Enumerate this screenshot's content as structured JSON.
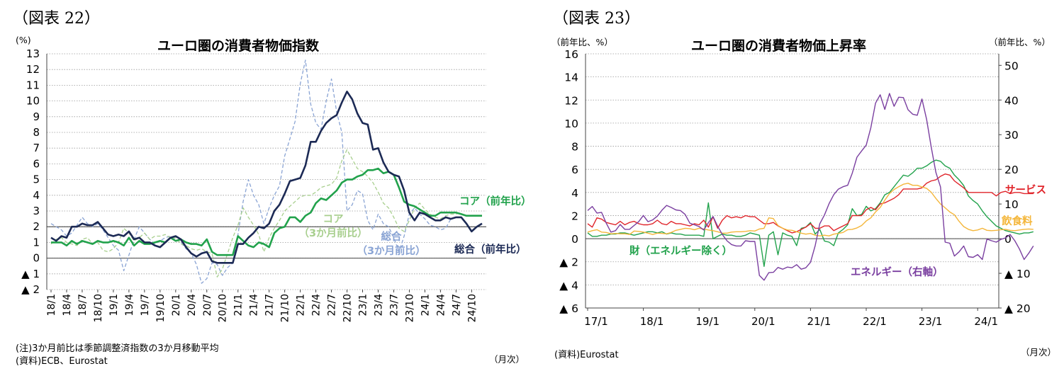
{
  "chart_data": [
    {
      "type": "line",
      "figure_label": "（図表 22）",
      "title": "ユーロ圏の消費者物価指数",
      "ylabel": "(%)",
      "xlabel": "（月次）",
      "ylim": [
        -2,
        13
      ],
      "ytick_values": [
        13,
        12,
        11,
        10,
        9,
        8,
        7,
        6,
        5,
        4,
        3,
        2,
        1,
        0,
        -1,
        -2
      ],
      "ytick_labels": [
        "13",
        "12",
        "11",
        "10",
        "9",
        "8",
        "7",
        "6",
        "5",
        "4",
        "3",
        "2",
        "1",
        "0",
        "▲ 1",
        "▲ 2"
      ],
      "xtick_labels": [
        "18/1",
        "18/4",
        "18/7",
        "18/10",
        "19/1",
        "19/4",
        "19/7",
        "19/10",
        "20/1",
        "20/4",
        "20/7",
        "20/10",
        "21/1",
        "21/4",
        "21/7",
        "21/10",
        "22/1",
        "22/4",
        "22/7",
        "22/10",
        "23/1",
        "23/4",
        "23/7",
        "23/10",
        "24/1",
        "24/4",
        "24/7",
        "24/10"
      ],
      "reference_line": 2,
      "notes": [
        "(注)3か月前比は季節調整済指数の3か月移動平均",
        "(資料)ECB、Eurostat"
      ],
      "series": [
        {
          "name": "総合（前年比）",
          "label_lines": [
            "総合（前年比）"
          ],
          "color": "#1c2a55",
          "width": 2.6,
          "dash": "",
          "values": [
            1.3,
            1.1,
            1.4,
            1.3,
            2.0,
            2.0,
            2.2,
            2.1,
            2.1,
            2.3,
            1.9,
            1.5,
            1.4,
            1.5,
            1.4,
            1.7,
            1.2,
            1.3,
            1.0,
            1.0,
            0.8,
            0.7,
            1.0,
            1.3,
            1.4,
            1.2,
            0.7,
            0.3,
            0.1,
            0.3,
            0.4,
            -0.2,
            -0.3,
            -0.3,
            -0.3,
            -0.3,
            0.9,
            0.9,
            1.3,
            1.6,
            2.0,
            1.9,
            2.2,
            3.0,
            3.4,
            4.1,
            4.9,
            5.0,
            5.1,
            5.9,
            7.4,
            7.4,
            8.1,
            8.6,
            8.9,
            9.1,
            9.9,
            10.6,
            10.1,
            9.2,
            8.6,
            8.5,
            6.9,
            7.0,
            6.1,
            5.5,
            5.3,
            5.2,
            4.3,
            2.9,
            2.4,
            2.9,
            2.8,
            2.6,
            2.4,
            2.4,
            2.6,
            2.5,
            2.6,
            2.6,
            2.2,
            1.7,
            2.0,
            2.2
          ]
        },
        {
          "name": "コア（前年比）",
          "label_lines": [
            "コア（前年比）"
          ],
          "color": "#22a24c",
          "width": 2.6,
          "dash": "",
          "values": [
            1.0,
            1.0,
            1.0,
            0.8,
            1.1,
            0.9,
            1.1,
            1.0,
            0.9,
            1.1,
            1.0,
            1.0,
            1.1,
            1.0,
            0.8,
            1.3,
            0.8,
            1.1,
            0.9,
            0.9,
            1.0,
            1.1,
            1.0,
            1.3,
            1.1,
            1.2,
            1.0,
            0.9,
            0.9,
            0.8,
            1.2,
            0.4,
            0.2,
            0.2,
            0.2,
            0.2,
            1.4,
            1.1,
            0.8,
            0.7,
            1.0,
            0.9,
            0.7,
            1.6,
            1.9,
            2.0,
            2.6,
            2.6,
            2.3,
            2.7,
            2.9,
            3.5,
            3.8,
            3.7,
            4.0,
            4.3,
            4.8,
            5.0,
            5.0,
            5.2,
            5.3,
            5.6,
            5.6,
            5.7,
            5.4,
            5.5,
            5.3,
            4.5,
            3.6,
            3.4,
            3.3,
            3.1,
            2.9,
            2.7,
            2.7,
            2.9,
            2.9,
            2.9,
            2.9,
            2.8,
            2.7,
            2.7,
            2.7,
            2.7
          ]
        },
        {
          "name": "総合（3か月前比）",
          "label_lines": [
            "総合",
            "（3か月前比）"
          ],
          "color": "#8aa4d4",
          "width": 1.3,
          "dash": "5 3",
          "values": [
            2.2,
            2.0,
            1.8,
            1.4,
            1.6,
            2.1,
            2.6,
            2.2,
            2.0,
            2.2,
            1.8,
            1.3,
            0.8,
            0.5,
            -0.8,
            0.2,
            1.2,
            2.0,
            1.6,
            1.2,
            0.9,
            1.1,
            1.3,
            1.4,
            1.2,
            1.0,
            0.6,
            0.3,
            -0.4,
            -1.6,
            -1.3,
            -0.3,
            -0.4,
            -1.1,
            -0.6,
            -0.3,
            1.5,
            3.6,
            5.0,
            4.0,
            3.4,
            2.2,
            3.2,
            4.0,
            4.6,
            6.5,
            7.6,
            8.7,
            11.1,
            12.6,
            9.8,
            8.6,
            8.2,
            10.0,
            11.4,
            9.3,
            8.0,
            3.0,
            3.4,
            4.3,
            4.1,
            2.4,
            1.8,
            2.8,
            2.2,
            2.0,
            1.3,
            0.4,
            1.4,
            2.8,
            3.2,
            2.8,
            2.5,
            2.1,
            2.0,
            1.8,
            1.9,
            2.5
          ]
        },
        {
          "name": "コア（3か月前比）",
          "label_lines": [
            "コア",
            "（3か月前比）"
          ],
          "color": "#a8cf8e",
          "width": 1.3,
          "dash": "5 3",
          "values": [
            0.9,
            1.2,
            1.3,
            1.0,
            0.9,
            0.8,
            1.2,
            1.3,
            0.9,
            1.0,
            0.5,
            0.4,
            0.6,
            1.0,
            1.9,
            1.6,
            1.1,
            1.3,
            1.6,
            1.2,
            1.4,
            1.4,
            1.5,
            1.3,
            1.3,
            0.9,
            0.8,
            0.6,
            0.5,
            0.6,
            0.4,
            0.3,
            -1.2,
            -0.7,
            0.3,
            1.3,
            2.1,
            3.2,
            2.6,
            2.1,
            1.5,
            0.4,
            1.3,
            1.9,
            2.4,
            3.0,
            3.3,
            3.6,
            3.9,
            4.0,
            4.0,
            4.2,
            4.5,
            4.6,
            4.7,
            5.1,
            6.2,
            6.9,
            6.3,
            5.7,
            5.5,
            5.2,
            4.8,
            4.2,
            3.5,
            3.2,
            2.6,
            1.9,
            1.7,
            2.4,
            3.2,
            3.5,
            3.1,
            2.8,
            2.6,
            2.5,
            2.7,
            2.8,
            2.8,
            2.9
          ]
        }
      ]
    },
    {
      "type": "line",
      "figure_label": "（図表 23）",
      "title": "ユーロ圏の消費者物価上昇率",
      "ylabel_left": "（前年比、%）",
      "ylabel_right": "（前年比、%）",
      "xlabel": "（月次）",
      "ylim_left": [
        -6,
        16
      ],
      "ylim_right": [
        -20,
        53.33
      ],
      "ytick_left_values": [
        16,
        14,
        12,
        10,
        8,
        6,
        4,
        2,
        0,
        -2,
        -4,
        -6
      ],
      "ytick_left_labels": [
        "16",
        "14",
        "12",
        "10",
        "8",
        "6",
        "4",
        "2",
        "0",
        "▲ 2",
        "▲ 4",
        "▲ 6"
      ],
      "ytick_right_values": [
        50,
        40,
        30,
        20,
        10,
        0,
        -10,
        -20
      ],
      "ytick_right_labels": [
        "50",
        "40",
        "30",
        "20",
        "10",
        "0",
        "▲ 10",
        "▲ 20"
      ],
      "xtick_labels": [
        "17/1",
        "18/1",
        "19/1",
        "20/1",
        "21/1",
        "22/1",
        "23/1",
        "24/1"
      ],
      "notes": [
        "(資料)Eurostat"
      ],
      "series": [
        {
          "name": "サービス",
          "label_lines": [
            "サービス"
          ],
          "axis": "left",
          "color": "#e0242a",
          "width": 1.4,
          "values": [
            1.3,
            1.0,
            1.8,
            1.7,
            1.4,
            1.3,
            1.2,
            1.5,
            1.2,
            1.4,
            1.5,
            1.3,
            1.2,
            1.2,
            1.3,
            1.6,
            1.3,
            1.2,
            1.5,
            1.3,
            1.3,
            1.2,
            1.1,
            1.3,
            1.2,
            1.6,
            1.0,
            1.9,
            0.9,
            1.6,
            2.0,
            1.8,
            1.9,
            1.8,
            2.0,
            1.9,
            1.9,
            1.6,
            1.3,
            1.3,
            1.4,
            1.1,
            0.9,
            0.7,
            0.5,
            0.6,
            0.8,
            1.0,
            1.3,
            0.9,
            0.9,
            1.1,
            1.1,
            0.7,
            0.9,
            1.1,
            1.3,
            2.0,
            2.0,
            2.0,
            2.5,
            2.7,
            2.5,
            3.0,
            3.1,
            3.3,
            3.5,
            3.8,
            4.3,
            4.3,
            4.3,
            4.3,
            4.4,
            4.8,
            5.0,
            5.1,
            5.4,
            5.6,
            5.5,
            5.0,
            4.7,
            4.4,
            4.0,
            4.0,
            4.0,
            4.0,
            4.0,
            4.0,
            3.7,
            4.0,
            4.1,
            3.9,
            4.0,
            4.0,
            3.9,
            3.9,
            3.9
          ]
        },
        {
          "name": "財（エネルギー除く）",
          "label_lines": [
            "財（エネルギー除く）"
          ],
          "axis": "left",
          "color": "#22a24c",
          "width": 1.4,
          "values": [
            0.5,
            0.2,
            0.2,
            0.3,
            0.3,
            0.4,
            0.4,
            0.5,
            0.5,
            0.4,
            0.3,
            0.4,
            0.5,
            0.6,
            0.6,
            0.5,
            0.6,
            0.4,
            0.5,
            0.4,
            0.4,
            0.3,
            0.3,
            0.3,
            0.3,
            0.2,
            3.1,
            0.0,
            0.2,
            0.4,
            0.3,
            0.3,
            0.2,
            0.2,
            0.3,
            0.5,
            0.4,
            0.3,
            -2.4,
            0.3,
            0.6,
            -1.4,
            0.5,
            0.3,
            0.2,
            -0.6,
            0.9,
            1.0,
            1.4,
            0.4,
            0.8,
            -0.2,
            -0.3,
            -0.6,
            0.5,
            0.8,
            1.2,
            2.6,
            2.0,
            2.1,
            2.8,
            2.4,
            2.6,
            3.1,
            3.8,
            4.0,
            4.5,
            5.0,
            5.5,
            5.4,
            5.7,
            6.1,
            6.1,
            6.3,
            6.6,
            6.8,
            6.7,
            6.3,
            6.1,
            5.5,
            5.1,
            4.6,
            3.7,
            3.3,
            3.0,
            2.4,
            1.9,
            1.5,
            1.1,
            0.9,
            0.7,
            0.6,
            0.5,
            0.4,
            0.5,
            0.5,
            0.6
          ]
        },
        {
          "name": "飲食料",
          "label_lines": [
            "飲食料"
          ],
          "axis": "right",
          "color": "#f4b63a",
          "width": 1.4,
          "values": [
            1.9,
            2.3,
            2.6,
            1.9,
            1.8,
            1.4,
            1.5,
            1.4,
            1.4,
            1.2,
            2.2,
            2.1,
            1.9,
            1.6,
            1.2,
            1.6,
            1.5,
            1.4,
            1.8,
            2.4,
            2.7,
            3.0,
            2.9,
            2.6,
            3.0,
            2.8,
            2.5,
            2.3,
            2.0,
            1.6,
            1.6,
            1.9,
            2.0,
            2.0,
            2.1,
            2.3,
            2.2,
            2.8,
            3.0,
            6.0,
            5.8,
            3.8,
            3.0,
            2.5,
            2.4,
            2.0,
            1.6,
            1.3,
            1.5,
            1.0,
            0.8,
            1.0,
            0.8,
            1.3,
            1.5,
            1.8,
            2.6,
            2.7,
            3.1,
            3.8,
            5.1,
            6.0,
            7.7,
            9.0,
            11.1,
            13.0,
            14.2,
            15.0,
            15.7,
            16.0,
            15.4,
            15.4,
            14.9,
            14.5,
            13.4,
            11.6,
            10.0,
            8.9,
            7.7,
            6.9,
            5.0,
            3.5,
            2.7,
            2.3,
            2.5,
            3.0,
            2.4,
            2.3,
            2.4,
            2.6,
            2.7,
            2.4,
            2.3,
            2.5,
            2.7,
            2.8,
            2.7
          ]
        },
        {
          "name": "エネルギー（右軸）",
          "label_lines": [
            "エネルギー（右軸）"
          ],
          "axis": "right",
          "color": "#7a3fa0",
          "width": 1.4,
          "values": [
            8.1,
            9.3,
            7.4,
            7.6,
            4.5,
            1.9,
            2.3,
            4.1,
            2.7,
            2.7,
            3.8,
            4.9,
            6.7,
            4.9,
            5.4,
            6.5,
            8.2,
            9.6,
            9.0,
            8.3,
            8.1,
            7.0,
            4.5,
            4.0,
            3.5,
            2.5,
            4.6,
            6.4,
            3.6,
            1.2,
            -0.6,
            -1.7,
            -2.1,
            -2.1,
            -0.6,
            -0.8,
            -0.8,
            -10.6,
            -12.0,
            -9.8,
            -9.7,
            -8.3,
            -8.8,
            -8.2,
            -8.4,
            -7.5,
            -8.8,
            -8.4,
            -6.8,
            -2.0,
            4.3,
            6.8,
            10.1,
            12.7,
            14.3,
            15.0,
            15.4,
            18.9,
            23.5,
            25.3,
            27.0,
            32.0,
            39.1,
            41.5,
            37.3,
            41.9,
            38.2,
            40.8,
            40.7,
            37.2,
            35.9,
            35.6,
            40.3,
            34.4,
            26.4,
            19.1,
            14.9,
            -1.0,
            -1.3,
            -5.0,
            -3.8,
            -2.1,
            -5.2,
            -5.4,
            -4.6,
            -6.0,
            -0.1,
            -0.6,
            -1.0,
            -0.2,
            0.2,
            1.2,
            -0.6,
            -3.0,
            -6.0,
            -4.2,
            -2.1
          ]
        }
      ]
    }
  ]
}
